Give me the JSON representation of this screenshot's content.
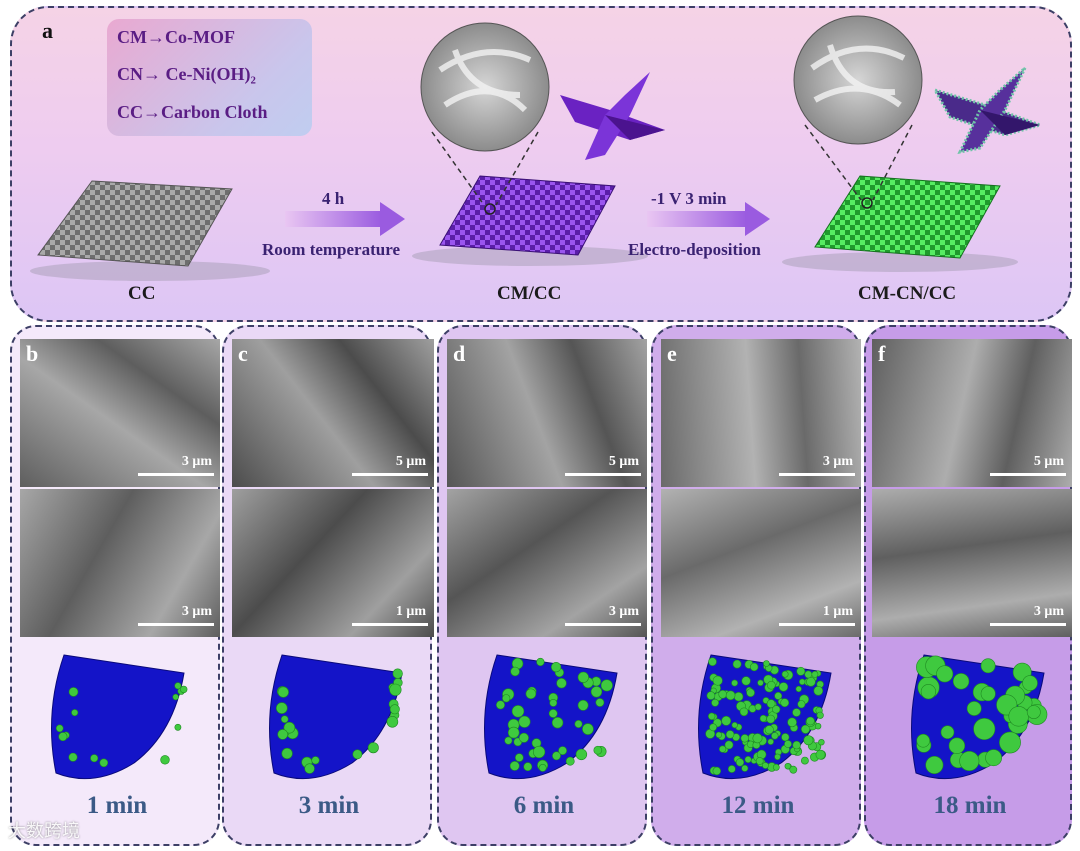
{
  "panel_a": {
    "label": "a",
    "legend": [
      "CM→Co-MOF",
      "CN→ Ce-Ni(OH)₂",
      "CC→Carbon Cloth"
    ],
    "step1": {
      "top": "4 h",
      "bottom": "Room  temperature"
    },
    "step2": {
      "top": "-1 V  3 min",
      "bottom": "Electro-deposition"
    },
    "captions": [
      "CC",
      "CM/CC",
      "CM-CN/CC"
    ]
  },
  "columns": [
    {
      "label": "b",
      "scale_top": "3 μm",
      "scale_bottom": "3 μm",
      "time": "1 min",
      "bg": "#f4e9fa"
    },
    {
      "label": "c",
      "scale_top": "5 μm",
      "scale_bottom": "1 μm",
      "time": "3 min",
      "bg": "#ead9f6"
    },
    {
      "label": "d",
      "scale_top": "5 μm",
      "scale_bottom": "3 μm",
      "time": "6 min",
      "bg": "#dfc6f1"
    },
    {
      "label": "e",
      "scale_top": "3 μm",
      "scale_bottom": "1 μm",
      "time": "12 min",
      "bg": "#d0adeb"
    },
    {
      "label": "f",
      "scale_top": "5 μm",
      "scale_bottom": "3 μm",
      "time": "18 min",
      "bg": "#c69ce8"
    }
  ],
  "colors": {
    "carbon_cloth": "#7c7c7c",
    "co_mof": "#7a2fd0",
    "cn_coated": "#3ecf4a",
    "flake_blue": "#1414c8",
    "particle_green": "#3fc93f",
    "time_text": "#3b5a86"
  },
  "watermark": "大数跨境"
}
